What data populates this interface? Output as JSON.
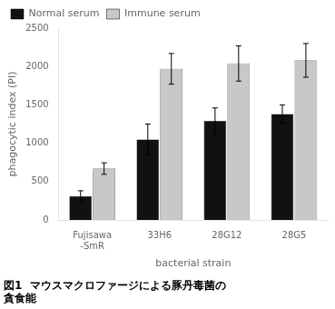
{
  "chart_data": {
    "type": "bar",
    "categories": [
      "Fujisawa\n-SmR",
      "33H6",
      "28G12",
      "28G5"
    ],
    "series": [
      {
        "name": "Normal serum",
        "color": "#111111",
        "values": [
          310,
          1050,
          1290,
          1380
        ],
        "errors": [
          70,
          200,
          170,
          120
        ]
      },
      {
        "name": "Immune serum",
        "color": "#c8c8c8",
        "values": [
          670,
          1970,
          2040,
          2080
        ],
        "errors": [
          75,
          200,
          230,
          220
        ]
      }
    ],
    "xlabel": "bacterial strain",
    "ylabel": "phagocytic index (PI)",
    "ylim": [
      0,
      2500
    ],
    "yticks": [
      0,
      500,
      1000,
      1500,
      2000,
      2500
    ],
    "grid": false,
    "legend": "upper left",
    "annotations": [
      "図1  マウスマクロファージによる豚丹毒菌の",
      "貪食能"
    ]
  }
}
